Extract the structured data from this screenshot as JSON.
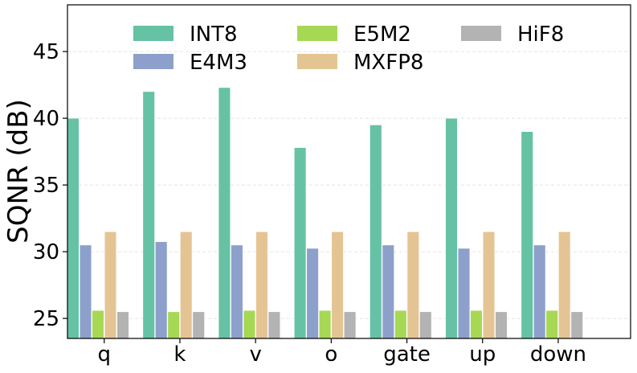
{
  "chart_data": {
    "type": "bar",
    "title": "",
    "xlabel": "",
    "ylabel": "SQNR (dB)",
    "ylim": [
      23.5,
      48.5
    ],
    "yticks": [
      25,
      30,
      35,
      40,
      45
    ],
    "grid": true,
    "legend_position": "top",
    "categories": [
      "q",
      "k",
      "v",
      "o",
      "gate",
      "up",
      "down"
    ],
    "series": [
      {
        "name": "INT8",
        "color": "#66c2a5",
        "values": [
          40.0,
          42.0,
          42.3,
          37.8,
          39.5,
          40.0,
          39.0
        ]
      },
      {
        "name": "E4M3",
        "color": "#8da0cb",
        "values": [
          30.5,
          30.75,
          30.5,
          30.25,
          30.5,
          30.25,
          30.5
        ]
      },
      {
        "name": "E5M2",
        "color": "#a6d854",
        "values": [
          25.6,
          25.5,
          25.6,
          25.6,
          25.6,
          25.6,
          25.6
        ]
      },
      {
        "name": "MXFP8",
        "color": "#e5c494",
        "values": [
          31.5,
          31.5,
          31.5,
          31.5,
          31.5,
          31.5,
          31.5
        ]
      },
      {
        "name": "HiF8",
        "color": "#b3b3b3",
        "values": [
          25.5,
          25.5,
          25.5,
          25.5,
          25.5,
          25.5,
          25.5
        ]
      }
    ]
  }
}
